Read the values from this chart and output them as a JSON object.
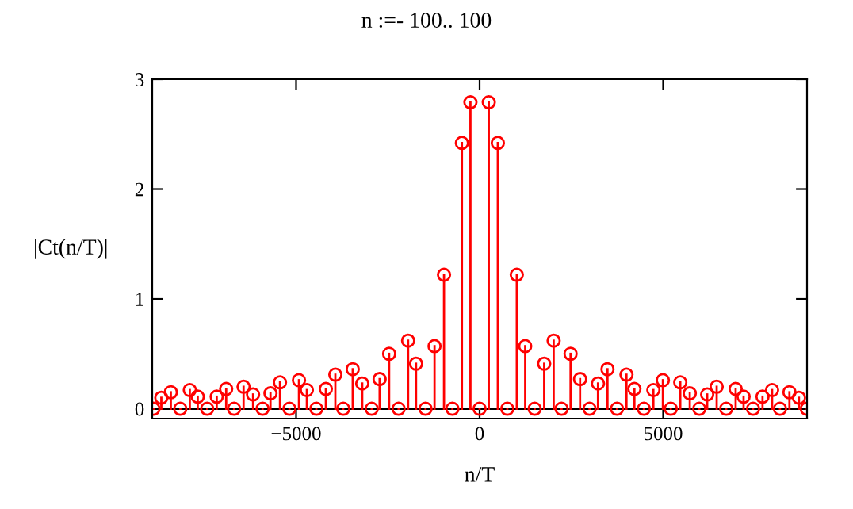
{
  "chart_data": {
    "type": "lollipop",
    "title": "n :=- 100.. 100",
    "xlabel": "n/T",
    "ylabel": "|Ct(n/T)|",
    "x": [
      -8887,
      -8672,
      -8413,
      -8155,
      -7896,
      -7680,
      -7422,
      -7163,
      -6905,
      -6689,
      -6431,
      -6172,
      -5913,
      -5698,
      -5439,
      -5181,
      -4922,
      -4707,
      -4448,
      -4189,
      -3931,
      -3715,
      -3457,
      -3198,
      -2940,
      -2724,
      -2465,
      -2207,
      -1948,
      -1732,
      -1473,
      -1228,
      -970,
      -741,
      -482,
      -250,
      0,
      250,
      496,
      754,
      1013,
      1242,
      1500,
      1759,
      2017,
      2233,
      2478,
      2737,
      2995,
      3225,
      3484,
      3743,
      4001,
      4217,
      4475,
      4734,
      4993,
      5209,
      5467,
      5726,
      5985,
      6200,
      6459,
      6718,
      6976,
      7192,
      7450,
      7708,
      7968,
      8183,
      8441,
      8700,
      8915
    ],
    "series": [
      {
        "color": "#ff0000",
        "values": [
          0,
          0.1,
          0.15,
          0,
          0.17,
          0.11,
          0,
          0.11,
          0.18,
          0,
          0.2,
          0.13,
          0,
          0.14,
          0.24,
          0,
          0.26,
          0.17,
          0,
          0.18,
          0.31,
          0,
          0.36,
          0.23,
          0,
          0.27,
          0.5,
          0,
          0.62,
          0.41,
          0,
          0.57,
          1.22,
          0,
          2.42,
          2.79,
          0,
          2.79,
          2.42,
          0,
          1.22,
          0.57,
          0,
          0.41,
          0.62,
          0,
          0.5,
          0.27,
          0,
          0.23,
          0.36,
          0,
          0.31,
          0.18,
          0,
          0.17,
          0.26,
          0,
          0.24,
          0.14,
          0,
          0.13,
          0.2,
          0,
          0.18,
          0.11,
          0,
          0.11,
          0.17,
          0,
          0.15,
          0.1,
          0
        ]
      }
    ],
    "marker": "circle",
    "xlim": [
      -8920,
      8920
    ],
    "ylim": [
      -0.09,
      3
    ],
    "xticks": [
      -5000,
      0,
      5000
    ],
    "yticks": [
      0,
      1,
      2,
      3
    ],
    "ref_lines": [
      {
        "axis": "y",
        "value": 0,
        "color": "#000000"
      }
    ],
    "grid": false,
    "legend": false
  }
}
